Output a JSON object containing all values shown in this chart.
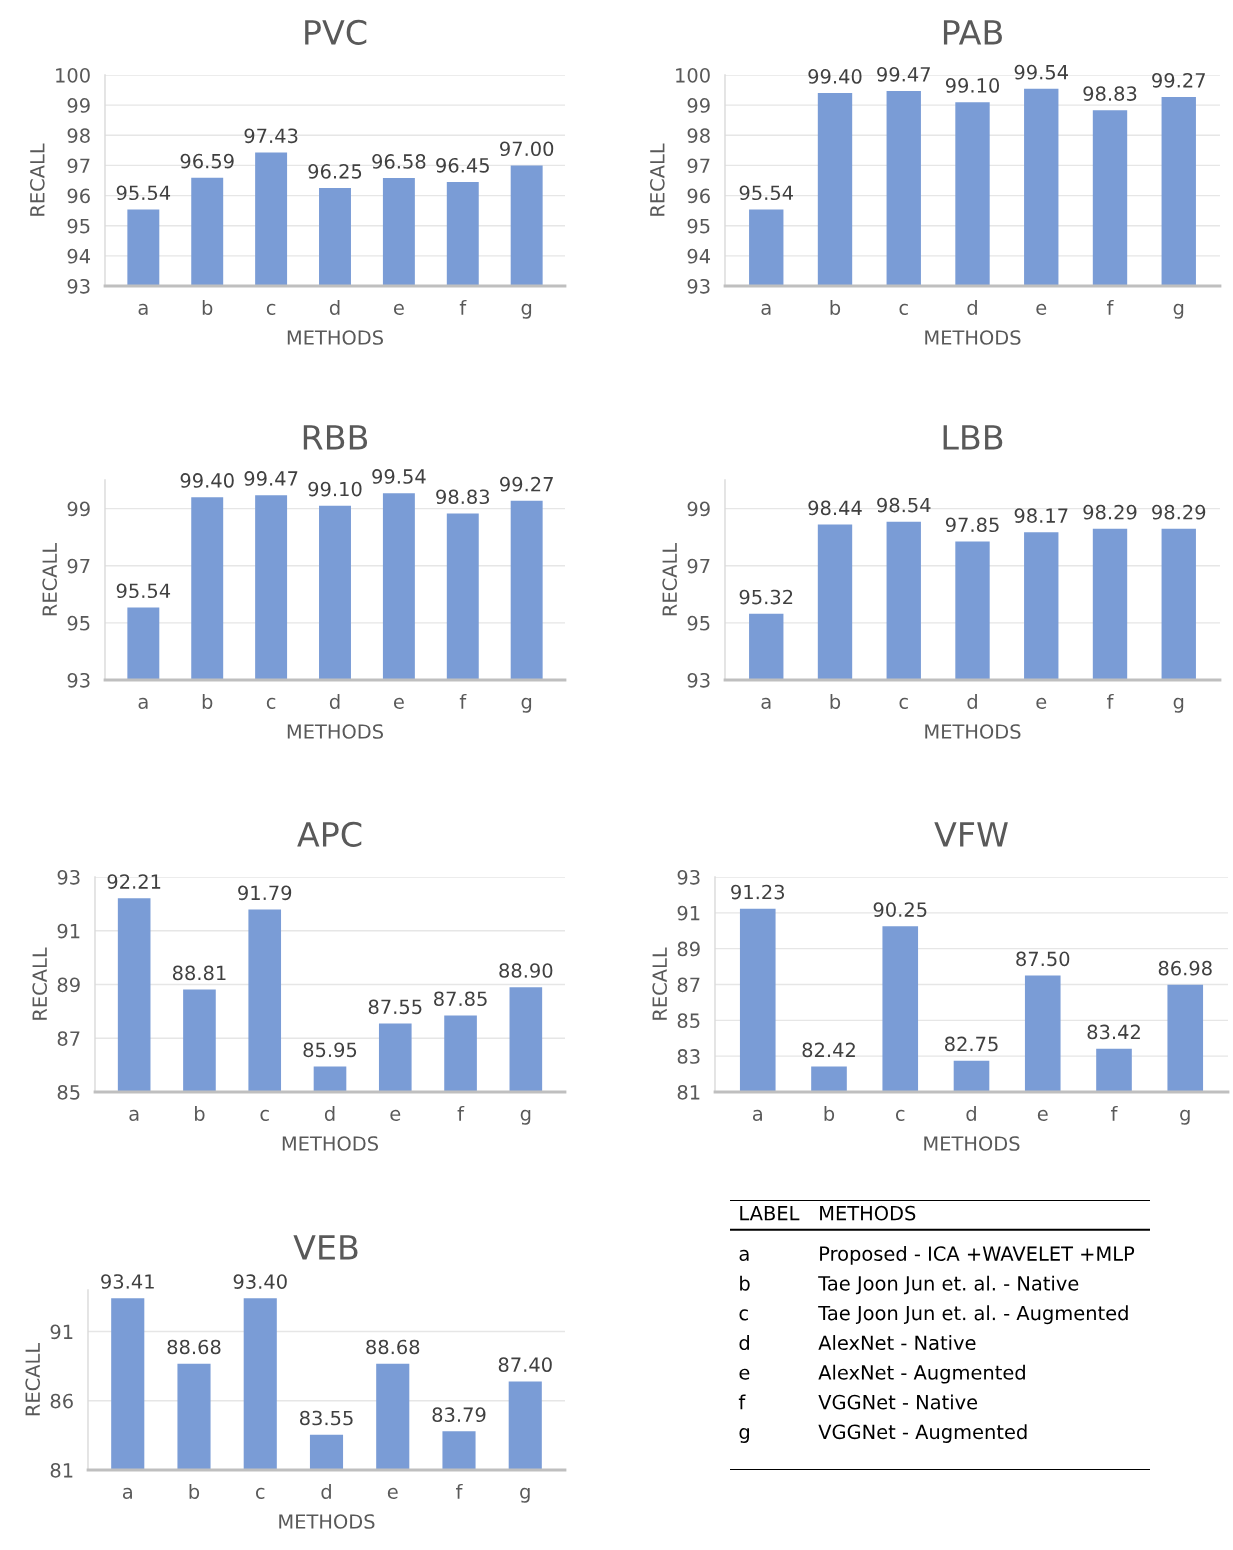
{
  "chart_data": [
    {
      "type": "bar",
      "title": "PVC",
      "xlabel": "METHODS",
      "ylabel": "RECALL",
      "categories": [
        "a",
        "b",
        "c",
        "d",
        "e",
        "f",
        "g"
      ],
      "values": [
        95.54,
        96.59,
        97.43,
        96.25,
        96.58,
        96.45,
        97.0
      ],
      "value_labels": [
        "95.54",
        "96.59",
        "97.43",
        "96.25",
        "96.58",
        "96.45",
        "97.00"
      ],
      "color": "#7a9cd6",
      "ylim": [
        93,
        100
      ],
      "yticks": [
        93,
        94,
        95,
        96,
        97,
        98,
        99,
        100
      ],
      "grid": "y"
    },
    {
      "type": "bar",
      "title": "PAB",
      "xlabel": "METHODS",
      "ylabel": "RECALL",
      "categories": [
        "a",
        "b",
        "c",
        "d",
        "e",
        "f",
        "g"
      ],
      "values": [
        95.54,
        99.4,
        99.47,
        99.1,
        99.54,
        98.83,
        99.27
      ],
      "value_labels": [
        "95.54",
        "99.40",
        "99.47",
        "99.10",
        "99.54",
        "98.83",
        "99.27"
      ],
      "color": "#7a9cd6",
      "ylim": [
        93,
        100
      ],
      "yticks": [
        93,
        94,
        95,
        96,
        97,
        98,
        99,
        100
      ],
      "grid": "y"
    },
    {
      "type": "bar",
      "title": "RBB",
      "xlabel": "METHODS",
      "ylabel": "RECALL",
      "categories": [
        "a",
        "b",
        "c",
        "d",
        "e",
        "f",
        "g"
      ],
      "values": [
        95.54,
        99.4,
        99.47,
        99.1,
        99.54,
        98.83,
        99.27
      ],
      "value_labels": [
        "95.54",
        "99.40",
        "99.47",
        "99.10",
        "99.54",
        "98.83",
        "99.27"
      ],
      "color": "#7a9cd6",
      "ylim": [
        93,
        100
      ],
      "yticks": [
        93,
        95,
        97,
        99
      ],
      "grid": "y"
    },
    {
      "type": "bar",
      "title": "LBB",
      "xlabel": "METHODS",
      "ylabel": "RECALL",
      "categories": [
        "a",
        "b",
        "c",
        "d",
        "e",
        "f",
        "g"
      ],
      "values": [
        95.32,
        98.44,
        98.54,
        97.85,
        98.17,
        98.29,
        98.29
      ],
      "value_labels": [
        "95.32",
        "98.44",
        "98.54",
        "97.85",
        "98.17",
        "98.29",
        "98.29"
      ],
      "color": "#7a9cd6",
      "ylim": [
        93,
        100
      ],
      "yticks": [
        93,
        95,
        97,
        99
      ],
      "grid": "y"
    },
    {
      "type": "bar",
      "title": "APC",
      "xlabel": "METHODS",
      "ylabel": "RECALL",
      "categories": [
        "a",
        "b",
        "c",
        "d",
        "e",
        "f",
        "g"
      ],
      "values": [
        92.21,
        88.81,
        91.79,
        85.95,
        87.55,
        87.85,
        88.9
      ],
      "value_labels": [
        "92.21",
        "88.81",
        "91.79",
        "85.95",
        "87.55",
        "87.85",
        "88.90"
      ],
      "color": "#7a9cd6",
      "ylim": [
        85,
        93
      ],
      "yticks": [
        85,
        87,
        89,
        91,
        93
      ],
      "grid": "y"
    },
    {
      "type": "bar",
      "title": "VFW",
      "xlabel": "METHODS",
      "ylabel": "RECALL",
      "categories": [
        "a",
        "b",
        "c",
        "d",
        "e",
        "f",
        "g"
      ],
      "values": [
        91.23,
        82.42,
        90.25,
        82.75,
        87.5,
        83.42,
        86.98
      ],
      "value_labels": [
        "91.23",
        "82.42",
        "90.25",
        "82.75",
        "87.50",
        "83.42",
        "86.98"
      ],
      "color": "#7a9cd6",
      "ylim": [
        81,
        93
      ],
      "yticks": [
        81,
        83,
        85,
        87,
        89,
        91,
        93
      ],
      "grid": "y"
    },
    {
      "type": "bar",
      "title": "VEB",
      "xlabel": "METHODS",
      "ylabel": "RECALL",
      "categories": [
        "a",
        "b",
        "c",
        "d",
        "e",
        "f",
        "g"
      ],
      "values": [
        93.41,
        88.68,
        93.4,
        83.55,
        88.68,
        83.79,
        87.4
      ],
      "value_labels": [
        "93.41",
        "88.68",
        "93.40",
        "83.55",
        "88.68",
        "83.79",
        "87.40"
      ],
      "color": "#7a9cd6",
      "ylim": [
        81,
        94
      ],
      "yticks": [
        81,
        86,
        91
      ],
      "grid": "y"
    },
    {
      "type": "other",
      "categories": [
        "a",
        "b",
        "c",
        "d",
        "e",
        "f",
        "g"
      ],
      "annotations": [
        "LABEL",
        "METHODS",
        "Proposed - ICA +WAVELET +MLP",
        "Tae Joon Jun et. al. - Native",
        "Tae Joon Jun et. al. - Augmented",
        "AlexNet - Native",
        "AlexNet - Augmented",
        "VGGNet - Native",
        "VGGNet - Augmented"
      ]
    }
  ]
}
